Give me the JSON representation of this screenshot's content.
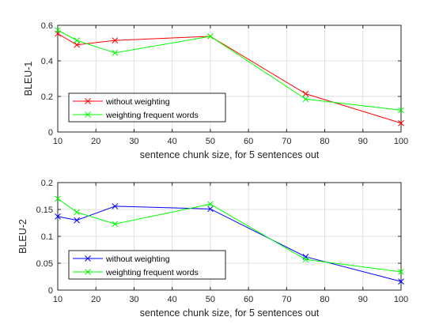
{
  "colors": {
    "red": "#ff0000",
    "green": "#00ff00",
    "blue": "#0000ff"
  },
  "chart_data": [
    {
      "type": "line",
      "x": [
        10,
        15,
        25,
        50,
        75,
        100
      ],
      "series": [
        {
          "name": "without weighting",
          "color": "#ff0000",
          "marker": "x",
          "values": [
            0.553,
            0.49,
            0.515,
            0.538,
            0.215,
            0.05
          ]
        },
        {
          "name": "weighting frequent words",
          "color": "#00ff00",
          "marker": "x",
          "values": [
            0.573,
            0.515,
            0.445,
            0.538,
            0.185,
            0.123
          ]
        }
      ],
      "xlabel": "sentence chunk size, for 5 sentences out",
      "ylabel": "BLEU-1",
      "xlim": [
        10,
        100
      ],
      "ylim": [
        0,
        0.6
      ],
      "xticks": [
        10,
        20,
        30,
        40,
        50,
        60,
        70,
        80,
        90,
        100
      ],
      "xtick_labels": [
        "10",
        "20",
        "30",
        "40",
        "50",
        "60",
        "70",
        "80",
        "90",
        "100"
      ],
      "yticks": [
        0,
        0.2,
        0.4,
        0.6
      ],
      "ytick_labels": [
        "0",
        "0.2",
        "0.4",
        "0.6"
      ],
      "grid": true,
      "legend_position": "bottom-left"
    },
    {
      "type": "line",
      "x": [
        10,
        15,
        25,
        50,
        75,
        100
      ],
      "series": [
        {
          "name": "without weighting",
          "color": "#0000ff",
          "marker": "x",
          "values": [
            0.137,
            0.13,
            0.156,
            0.151,
            0.062,
            0.016
          ]
        },
        {
          "name": "weighting frequent words",
          "color": "#00ff00",
          "marker": "x",
          "values": [
            0.17,
            0.145,
            0.123,
            0.16,
            0.057,
            0.034
          ]
        }
      ],
      "xlabel": "sentence chunk size, for 5 sentences out",
      "ylabel": "BLEU-2",
      "xlim": [
        10,
        100
      ],
      "ylim": [
        0,
        0.2
      ],
      "xticks": [
        10,
        20,
        30,
        40,
        50,
        60,
        70,
        80,
        90,
        100
      ],
      "xtick_labels": [
        "10",
        "20",
        "30",
        "40",
        "50",
        "60",
        "70",
        "80",
        "90",
        "100"
      ],
      "yticks": [
        0,
        0.05,
        0.1,
        0.15,
        0.2
      ],
      "ytick_labels": [
        "0",
        "0.05",
        "0.1",
        "0.15",
        "0.2"
      ],
      "grid": true,
      "legend_position": "bottom-left"
    }
  ]
}
